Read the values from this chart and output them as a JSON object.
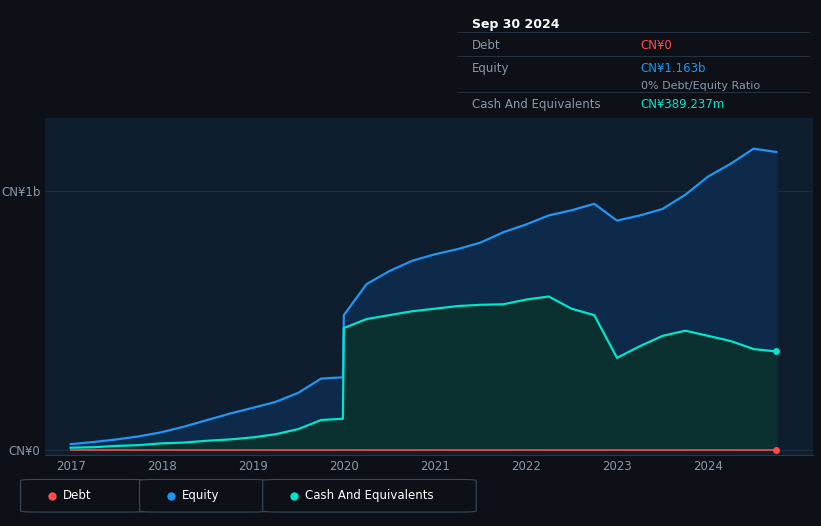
{
  "bg_color": "#0d1117",
  "plot_bg_color": "#0e1e2e",
  "ylabel_top": "CN¥1b",
  "ylabel_bottom": "CN¥0",
  "x_labels": [
    "2017",
    "2018",
    "2019",
    "2020",
    "2021",
    "2022",
    "2023",
    "2024"
  ],
  "legend_items": [
    "Debt",
    "Equity",
    "Cash And Equivalents"
  ],
  "legend_colors": [
    "#ff4d4d",
    "#2196f3",
    "#00e5cc"
  ],
  "tooltip_date": "Sep 30 2024",
  "tooltip_debt_label": "Debt",
  "tooltip_debt_value": "CN¥0",
  "tooltip_equity_label": "Equity",
  "tooltip_equity_value": "CN¥1.163b",
  "tooltip_ratio": "0% Debt/Equity Ratio",
  "tooltip_cash_label": "Cash And Equivalents",
  "tooltip_cash_value": "CN¥389.237m",
  "equity_color": "#2196f3",
  "cash_color": "#00e5cc",
  "debt_color": "#ff4d4d",
  "years": [
    2017.0,
    2017.25,
    2017.5,
    2017.75,
    2018.0,
    2018.25,
    2018.5,
    2018.75,
    2019.0,
    2019.25,
    2019.5,
    2019.75,
    2019.99,
    2020.0,
    2020.25,
    2020.5,
    2020.75,
    2021.0,
    2021.25,
    2021.5,
    2021.75,
    2022.0,
    2022.25,
    2022.5,
    2022.75,
    2023.0,
    2023.25,
    2023.5,
    2023.75,
    2024.0,
    2024.25,
    2024.5,
    2024.75
  ],
  "equity": [
    0.022,
    0.03,
    0.04,
    0.052,
    0.068,
    0.09,
    0.115,
    0.14,
    0.162,
    0.185,
    0.22,
    0.275,
    0.28,
    0.52,
    0.64,
    0.69,
    0.73,
    0.755,
    0.775,
    0.8,
    0.84,
    0.87,
    0.905,
    0.925,
    0.95,
    0.885,
    0.905,
    0.93,
    0.985,
    1.055,
    1.105,
    1.163,
    1.15
  ],
  "cash": [
    0.008,
    0.01,
    0.015,
    0.018,
    0.025,
    0.028,
    0.035,
    0.04,
    0.048,
    0.06,
    0.08,
    0.115,
    0.12,
    0.47,
    0.505,
    0.52,
    0.535,
    0.545,
    0.555,
    0.56,
    0.562,
    0.58,
    0.592,
    0.545,
    0.52,
    0.355,
    0.4,
    0.44,
    0.46,
    0.44,
    0.42,
    0.389,
    0.38
  ],
  "debt": [
    0.0,
    0.0,
    0.0,
    0.0,
    0.0,
    0.0,
    0.0,
    0.0,
    0.0,
    0.0,
    0.0,
    0.0,
    0.0,
    0.0,
    0.0,
    0.0,
    0.0,
    0.0,
    0.0,
    0.0,
    0.0,
    0.0,
    0.0,
    0.0,
    0.0,
    0.0,
    0.0,
    0.0,
    0.0,
    0.0,
    0.0,
    0.0,
    0.0
  ]
}
